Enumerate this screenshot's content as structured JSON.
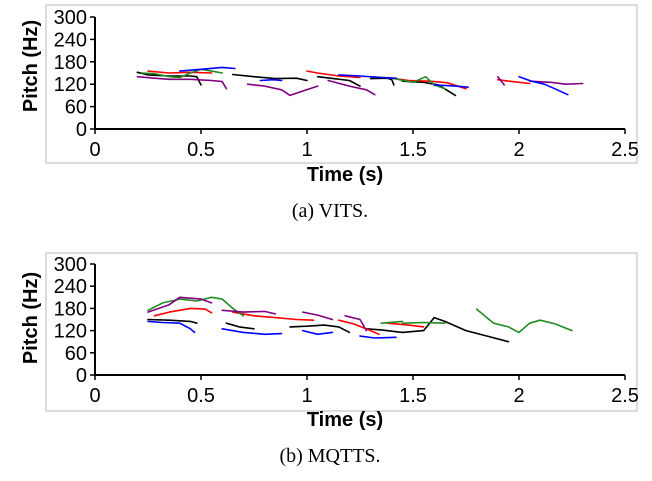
{
  "chart_data": [
    {
      "type": "line",
      "caption": "(a) VITS.",
      "xlabel": "Time (s)",
      "ylabel": "Pitch (Hz)",
      "xlim": [
        0,
        2.5
      ],
      "ylim": [
        0,
        300
      ],
      "x_ticks": [
        0,
        0.5,
        1,
        1.5,
        2,
        2.5
      ],
      "x_tick_labels": [
        "0",
        "0.5",
        "1",
        "1.5",
        "2",
        "2.5"
      ],
      "y_ticks": [
        0,
        60,
        120,
        180,
        240,
        300
      ],
      "y_tick_labels": [
        "0",
        "60",
        "120",
        "180",
        "240",
        "300"
      ],
      "series": [
        {
          "name": "black",
          "color": "#000000",
          "segments": [
            [
              [
                0.2,
                152
              ],
              [
                0.25,
                145
              ],
              [
                0.35,
                142
              ],
              [
                0.45,
                142
              ],
              [
                0.48,
                140
              ],
              [
                0.5,
                118
              ]
            ],
            [
              [
                0.65,
                146
              ],
              [
                0.75,
                140
              ],
              [
                0.85,
                135
              ],
              [
                0.95,
                136
              ],
              [
                1.0,
                130
              ]
            ],
            [
              [
                1.05,
                140
              ],
              [
                1.1,
                137
              ],
              [
                1.2,
                130
              ],
              [
                1.25,
                115
              ]
            ],
            [
              [
                1.3,
                135
              ],
              [
                1.38,
                136
              ],
              [
                1.4,
                132
              ],
              [
                1.41,
                118
              ]
            ],
            [
              [
                1.45,
                128
              ],
              [
                1.55,
                125
              ],
              [
                1.62,
                118
              ],
              [
                1.7,
                90
              ]
            ]
          ]
        },
        {
          "name": "red",
          "color": "#ff0000",
          "segments": [
            [
              [
                0.25,
                155
              ],
              [
                0.35,
                150
              ],
              [
                0.45,
                152
              ],
              [
                0.55,
                150
              ]
            ],
            [
              [
                1.0,
                155
              ],
              [
                1.05,
                150
              ],
              [
                1.15,
                142
              ],
              [
                1.25,
                138
              ]
            ],
            [
              [
                1.38,
                138
              ],
              [
                1.48,
                130
              ],
              [
                1.58,
                128
              ],
              [
                1.66,
                124
              ],
              [
                1.75,
                108
              ]
            ],
            [
              [
                1.9,
                132
              ],
              [
                1.97,
                127
              ],
              [
                2.05,
                122
              ]
            ]
          ]
        },
        {
          "name": "green",
          "color": "#228b22",
          "segments": [
            [
              [
                0.22,
                150
              ],
              [
                0.28,
                148
              ],
              [
                0.35,
                140
              ],
              [
                0.4,
                138
              ],
              [
                0.45,
                150
              ],
              [
                0.5,
                160
              ],
              [
                0.55,
                155
              ],
              [
                0.6,
                150
              ]
            ],
            [
              [
                1.3,
                140
              ],
              [
                1.4,
                136
              ],
              [
                1.5,
                125
              ],
              [
                1.56,
                140
              ],
              [
                1.6,
                118
              ],
              [
                1.65,
                108
              ]
            ]
          ]
        },
        {
          "name": "purple",
          "color": "#800080",
          "segments": [
            [
              [
                0.2,
                140
              ],
              [
                0.28,
                136
              ],
              [
                0.35,
                133
              ],
              [
                0.45,
                133
              ],
              [
                0.55,
                130
              ],
              [
                0.6,
                127
              ],
              [
                0.62,
                108
              ]
            ],
            [
              [
                0.72,
                120
              ],
              [
                0.8,
                115
              ],
              [
                0.88,
                105
              ],
              [
                0.92,
                90
              ],
              [
                0.97,
                100
              ],
              [
                1.05,
                115
              ]
            ],
            [
              [
                1.1,
                130
              ],
              [
                1.2,
                115
              ],
              [
                1.28,
                105
              ],
              [
                1.32,
                92
              ]
            ],
            [
              [
                1.9,
                140
              ],
              [
                1.93,
                118
              ]
            ],
            [
              [
                2.05,
                128
              ],
              [
                2.15,
                125
              ],
              [
                2.22,
                120
              ],
              [
                2.3,
                122
              ]
            ]
          ]
        },
        {
          "name": "blue",
          "color": "#0000ff",
          "segments": [
            [
              [
                0.4,
                155
              ],
              [
                0.5,
                160
              ],
              [
                0.6,
                165
              ],
              [
                0.66,
                162
              ]
            ],
            [
              [
                0.78,
                130
              ],
              [
                0.84,
                132
              ],
              [
                0.88,
                130
              ]
            ],
            [
              [
                1.15,
                145
              ],
              [
                1.25,
                142
              ],
              [
                1.35,
                138
              ],
              [
                1.42,
                136
              ]
            ],
            [
              [
                1.6,
                118
              ],
              [
                1.7,
                115
              ],
              [
                1.76,
                112
              ]
            ],
            [
              [
                2.0,
                140
              ],
              [
                2.06,
                128
              ],
              [
                2.12,
                120
              ],
              [
                2.18,
                105
              ],
              [
                2.23,
                92
              ]
            ]
          ]
        }
      ]
    },
    {
      "type": "line",
      "caption": "(b) MQTTS.",
      "xlabel": "Time (s)",
      "ylabel": "Pitch (Hz)",
      "xlim": [
        0,
        2.5
      ],
      "ylim": [
        0,
        300
      ],
      "x_ticks": [
        0,
        0.5,
        1,
        1.5,
        2,
        2.5
      ],
      "x_tick_labels": [
        "0",
        "0.5",
        "1",
        "1.5",
        "2",
        "2.5"
      ],
      "y_ticks": [
        0,
        60,
        120,
        180,
        240,
        300
      ],
      "y_tick_labels": [
        "0",
        "60",
        "120",
        "180",
        "240",
        "300"
      ],
      "series": [
        {
          "name": "black",
          "color": "#000000",
          "segments": [
            [
              [
                0.25,
                150
              ],
              [
                0.35,
                148
              ],
              [
                0.45,
                145
              ],
              [
                0.48,
                140
              ]
            ],
            [
              [
                0.62,
                140
              ],
              [
                0.68,
                130
              ],
              [
                0.75,
                125
              ]
            ],
            [
              [
                0.92,
                130
              ],
              [
                1.0,
                132
              ],
              [
                1.08,
                135
              ],
              [
                1.15,
                130
              ],
              [
                1.2,
                115
              ]
            ],
            [
              [
                1.28,
                125
              ],
              [
                1.35,
                122
              ],
              [
                1.45,
                115
              ],
              [
                1.55,
                120
              ],
              [
                1.6,
                155
              ],
              [
                1.65,
                145
              ],
              [
                1.75,
                120
              ],
              [
                1.85,
                105
              ],
              [
                1.95,
                90
              ]
            ]
          ]
        },
        {
          "name": "red",
          "color": "#ff0000",
          "segments": [
            [
              [
                0.28,
                160
              ],
              [
                0.35,
                170
              ],
              [
                0.45,
                180
              ],
              [
                0.52,
                178
              ],
              [
                0.55,
                168
              ]
            ],
            [
              [
                0.65,
                170
              ],
              [
                0.75,
                160
              ],
              [
                0.85,
                155
              ],
              [
                0.95,
                150
              ],
              [
                1.03,
                148
              ]
            ],
            [
              [
                1.15,
                148
              ],
              [
                1.22,
                138
              ],
              [
                1.3,
                120
              ],
              [
                1.34,
                110
              ]
            ],
            [
              [
                1.38,
                140
              ],
              [
                1.48,
                135
              ],
              [
                1.55,
                130
              ]
            ]
          ]
        },
        {
          "name": "green",
          "color": "#228b22",
          "segments": [
            [
              [
                0.25,
                175
              ],
              [
                0.32,
                195
              ],
              [
                0.4,
                205
              ],
              [
                0.48,
                200
              ],
              [
                0.55,
                210
              ],
              [
                0.6,
                205
              ],
              [
                0.65,
                180
              ],
              [
                0.7,
                160
              ]
            ],
            [
              [
                1.45,
                140
              ],
              [
                1.55,
                142
              ],
              [
                1.65,
                140
              ]
            ],
            [
              [
                1.35,
                140
              ],
              [
                1.45,
                145
              ]
            ],
            [
              [
                1.8,
                178
              ],
              [
                1.88,
                140
              ],
              [
                1.95,
                130
              ],
              [
                2.0,
                115
              ],
              [
                2.05,
                140
              ],
              [
                2.1,
                148
              ],
              [
                2.17,
                138
              ],
              [
                2.25,
                120
              ]
            ]
          ]
        },
        {
          "name": "purple",
          "color": "#800080",
          "segments": [
            [
              [
                0.25,
                170
              ],
              [
                0.35,
                190
              ],
              [
                0.4,
                210
              ],
              [
                0.5,
                205
              ],
              [
                0.55,
                195
              ]
            ],
            [
              [
                0.6,
                175
              ],
              [
                0.7,
                170
              ],
              [
                0.8,
                172
              ],
              [
                0.85,
                165
              ]
            ],
            [
              [
                0.98,
                170
              ],
              [
                1.05,
                162
              ],
              [
                1.12,
                150
              ]
            ],
            [
              [
                1.18,
                160
              ],
              [
                1.25,
                150
              ],
              [
                1.28,
                120
              ]
            ]
          ]
        },
        {
          "name": "blue",
          "color": "#0000ff",
          "segments": [
            [
              [
                0.25,
                145
              ],
              [
                0.32,
                142
              ],
              [
                0.4,
                140
              ],
              [
                0.45,
                125
              ],
              [
                0.47,
                115
              ]
            ],
            [
              [
                0.6,
                125
              ],
              [
                0.7,
                115
              ],
              [
                0.8,
                110
              ],
              [
                0.88,
                112
              ]
            ],
            [
              [
                0.98,
                120
              ],
              [
                1.05,
                110
              ],
              [
                1.12,
                115
              ]
            ],
            [
              [
                1.25,
                105
              ],
              [
                1.32,
                100
              ],
              [
                1.42,
                102
              ]
            ]
          ]
        }
      ]
    }
  ]
}
